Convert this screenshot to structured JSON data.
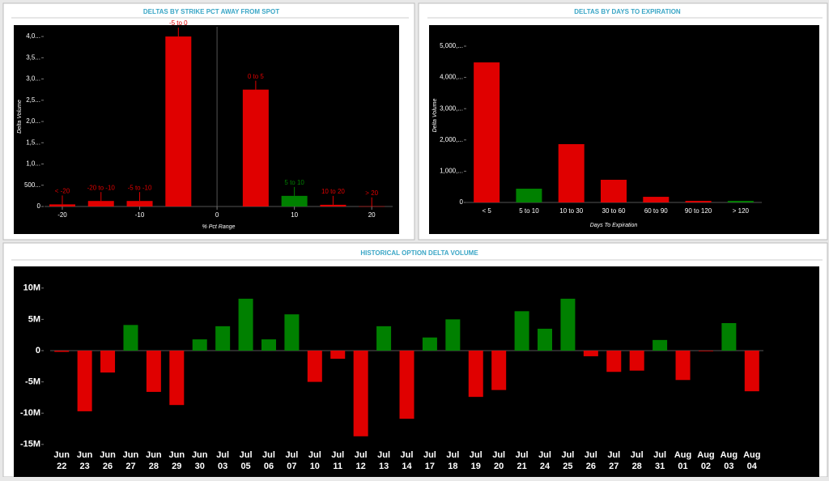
{
  "chart_data": [
    {
      "type": "bar",
      "title": "DELTAS BY STRIKE PCT AWAY FROM SPOT",
      "x_label": "% Pct Range",
      "y_label": "Delta Volume",
      "x": [
        -20,
        -15,
        -10,
        -5,
        5,
        10,
        15,
        20
      ],
      "bar_labels": [
        "< -20",
        "-20 to -10",
        "-5 to -10",
        "-5 to 0",
        "0 to 5",
        "5 to 10",
        "10 to 20",
        "> 20"
      ],
      "values": [
        50,
        130,
        130,
        4000,
        2750,
        250,
        40,
        5
      ],
      "colors": [
        "#e00000",
        "#e00000",
        "#e00000",
        "#e00000",
        "#e00000",
        "#008000",
        "#e00000",
        "#e00000"
      ],
      "xlim": [
        -22.3,
        22.7
      ],
      "xticks": [
        -20,
        -10,
        0,
        10,
        20
      ],
      "ylim": [
        0,
        4230
      ],
      "yticks": [
        0,
        {
          "value": 500,
          "label": "500..."
        },
        {
          "value": 1000,
          "label": "1,0..."
        },
        {
          "value": 1500,
          "label": "1,5..."
        },
        {
          "value": 2000,
          "label": "2,0..."
        },
        {
          "value": 2500,
          "label": "2,5..."
        },
        {
          "value": 3000,
          "label": "3,0..."
        },
        {
          "value": 3500,
          "label": "3,5..."
        },
        {
          "value": 4000,
          "label": "4,0..."
        }
      ]
    },
    {
      "type": "bar",
      "title": "DELTAS BY DAYS TO EXPIRATION",
      "x_label": "Days To Expiration",
      "y_label": "Delta Volume",
      "categories": [
        "< 5",
        "5 to 10",
        "10 to 30",
        "30 to 60",
        "60 to 90",
        "90 to 120",
        "> 120"
      ],
      "values": [
        4480,
        440,
        1865,
        725,
        180,
        50,
        50
      ],
      "colors": [
        "#e00000",
        "#008000",
        "#e00000",
        "#e00000",
        "#e00000",
        "#e00000",
        "#008000"
      ],
      "ylim": [
        0,
        5570
      ],
      "yticks": [
        0,
        {
          "value": 1000,
          "label": "1,000,..."
        },
        {
          "value": 2000,
          "label": "2,000,..."
        },
        {
          "value": 3000,
          "label": "3,000,..."
        },
        {
          "value": 4000,
          "label": "4,000,..."
        },
        {
          "value": 5000,
          "label": "5,000,..."
        }
      ]
    },
    {
      "type": "bar",
      "title": "HISTORICAL OPTION DELTA VOLUME",
      "categories": [
        [
          "Jun",
          "22"
        ],
        [
          "Jun",
          "23"
        ],
        [
          "Jun",
          "26"
        ],
        [
          "Jun",
          "27"
        ],
        [
          "Jun",
          "28"
        ],
        [
          "Jun",
          "29"
        ],
        [
          "Jun",
          "30"
        ],
        [
          "Jul",
          "03"
        ],
        [
          "Jul",
          "05"
        ],
        [
          "Jul",
          "06"
        ],
        [
          "Jul",
          "07"
        ],
        [
          "Jul",
          "10"
        ],
        [
          "Jul",
          "11"
        ],
        [
          "Jul",
          "12"
        ],
        [
          "Jul",
          "13"
        ],
        [
          "Jul",
          "14"
        ],
        [
          "Jul",
          "17"
        ],
        [
          "Jul",
          "18"
        ],
        [
          "Jul",
          "19"
        ],
        [
          "Jul",
          "20"
        ],
        [
          "Jul",
          "21"
        ],
        [
          "Jul",
          "24"
        ],
        [
          "Jul",
          "25"
        ],
        [
          "Jul",
          "26"
        ],
        [
          "Jul",
          "27"
        ],
        [
          "Jul",
          "28"
        ],
        [
          "Jul",
          "31"
        ],
        [
          "Aug",
          "01"
        ],
        [
          "Aug",
          "02"
        ],
        [
          "Aug",
          "03"
        ],
        [
          "Aug",
          "04"
        ]
      ],
      "values": [
        -200000,
        -9700000,
        -3500000,
        4100000,
        -6600000,
        -8700000,
        1800000,
        3900000,
        8300000,
        1800000,
        5800000,
        -5000000,
        -1300000,
        -13700000,
        3900000,
        -10900000,
        2100000,
        5000000,
        -7400000,
        -6300000,
        6300000,
        3500000,
        8300000,
        -900000,
        -3400000,
        -3200000,
        1700000,
        -4700000,
        -100000,
        4400000,
        -6500000
      ],
      "colors": [
        "#e00000",
        "#e00000",
        "#e00000",
        "#008000",
        "#e00000",
        "#e00000",
        "#008000",
        "#008000",
        "#008000",
        "#008000",
        "#008000",
        "#e00000",
        "#e00000",
        "#e00000",
        "#008000",
        "#e00000",
        "#008000",
        "#008000",
        "#e00000",
        "#e00000",
        "#008000",
        "#008000",
        "#008000",
        "#e00000",
        "#e00000",
        "#e00000",
        "#008000",
        "#e00000",
        "#e00000",
        "#008000",
        "#e00000"
      ],
      "ylim": [
        -15800000,
        12300000
      ],
      "yticks": [
        {
          "value": -15000000,
          "label": "-15M"
        },
        {
          "value": -10000000,
          "label": "-10M"
        },
        {
          "value": -5000000,
          "label": "-5M"
        },
        0,
        {
          "value": 5000000,
          "label": "5M"
        },
        {
          "value": 10000000,
          "label": "10M"
        }
      ]
    }
  ]
}
